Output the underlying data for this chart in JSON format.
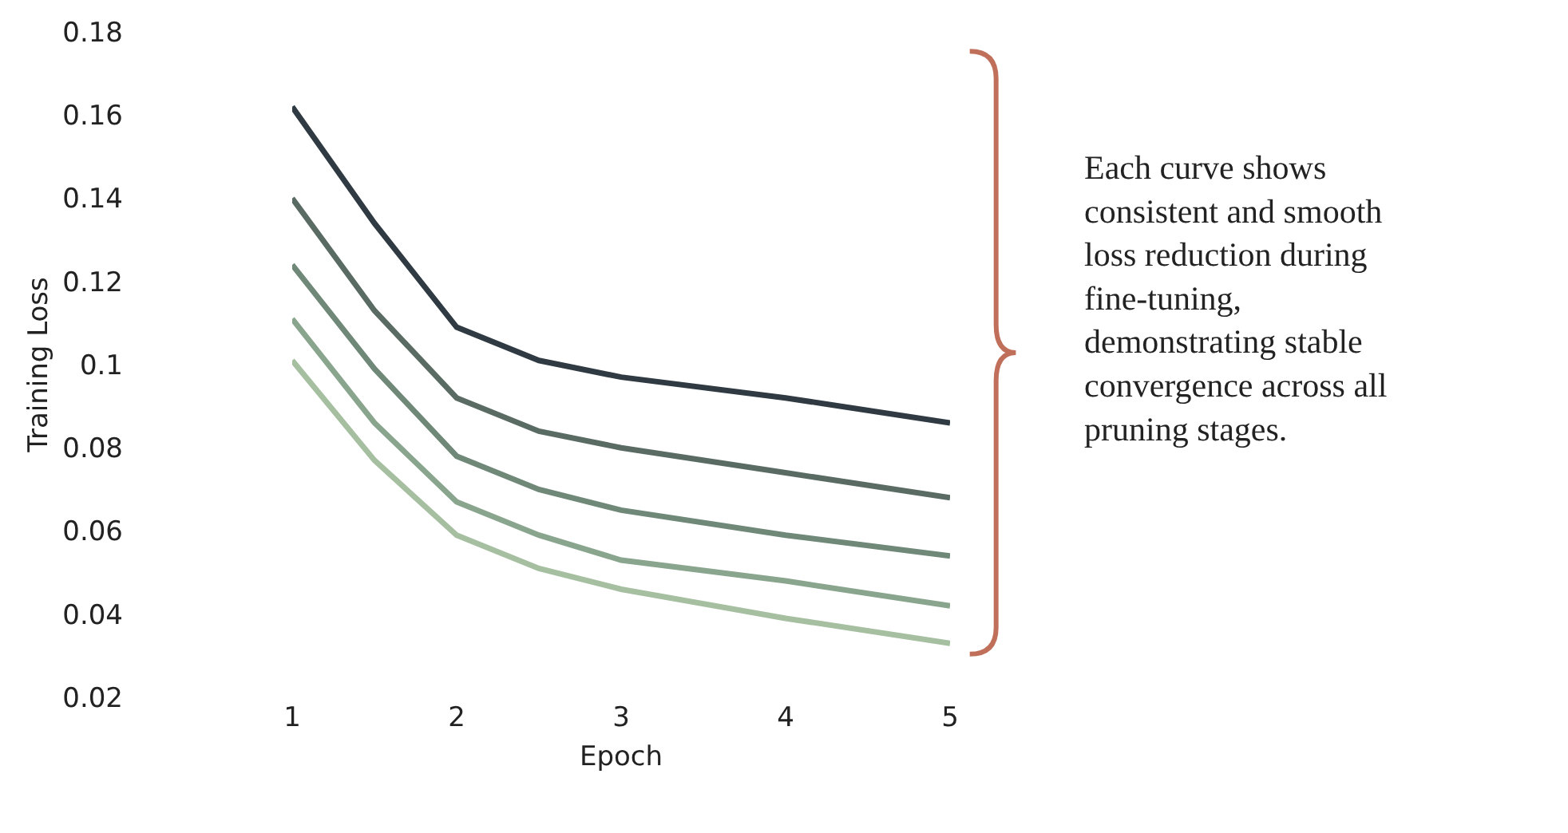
{
  "chart_data": {
    "type": "line",
    "xlabel": "Epoch",
    "ylabel": "Training Loss",
    "x": [
      1,
      1.5,
      2,
      2.5,
      3,
      4,
      5
    ],
    "series": [
      {
        "color": "#2f3a42",
        "values": [
          0.162,
          0.134,
          0.109,
          0.101,
          0.097,
          0.092,
          0.086
        ]
      },
      {
        "color": "#5a6b64",
        "values": [
          0.14,
          0.113,
          0.092,
          0.084,
          0.08,
          0.074,
          0.068
        ]
      },
      {
        "color": "#6f8878",
        "values": [
          0.124,
          0.099,
          0.078,
          0.07,
          0.065,
          0.059,
          0.054
        ]
      },
      {
        "color": "#8aa58e",
        "values": [
          0.111,
          0.086,
          0.067,
          0.059,
          0.053,
          0.048,
          0.042
        ]
      },
      {
        "color": "#a5bfa0",
        "values": [
          0.101,
          0.077,
          0.059,
          0.051,
          0.046,
          0.039,
          0.033
        ]
      }
    ],
    "xlim": [
      1,
      5
    ],
    "xticks": [
      1,
      2,
      3,
      4,
      5
    ],
    "ylim": [
      0.02,
      0.18
    ],
    "yticks": [
      0.02,
      0.04,
      0.06,
      0.08,
      {
        "value": 0.1,
        "label": "0.1"
      },
      0.12,
      0.14,
      0.16,
      0.18
    ],
    "marker": "none",
    "line_style": "solid",
    "annotations": [
      "Each curve shows consistent and smooth loss reduction during fine-tuning, demonstrating stable convergence across all pruning stages."
    ]
  }
}
